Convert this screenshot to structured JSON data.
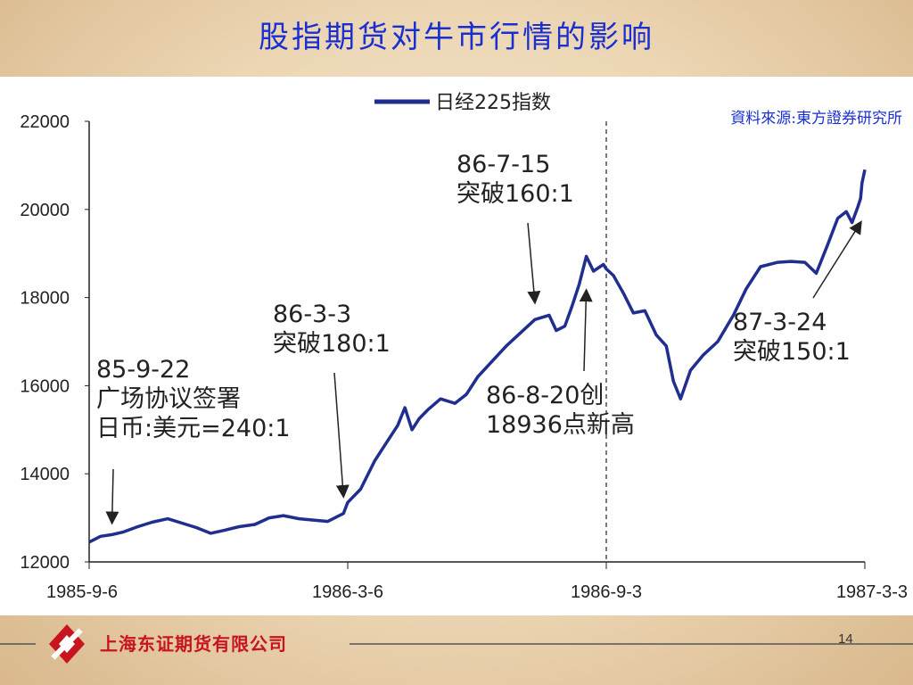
{
  "slide": {
    "title": "股指期货对牛市行情的影响",
    "page_number": "14",
    "company": "上海东证期货有限公司"
  },
  "colors": {
    "series": "#1f2e8f",
    "title": "#1a2fd0",
    "source": "#1a2fd0",
    "logo": "#c8141e"
  },
  "chart_data": {
    "type": "line",
    "source_note": "資料來源:東方證券研究所",
    "ylim": [
      12000,
      22000
    ],
    "y_ticks": [
      "12000",
      "14000",
      "16000",
      "18000",
      "20000",
      "22000"
    ],
    "x_ticks": [
      {
        "date": "1985-09-06",
        "label": "1985-9-6"
      },
      {
        "date": "1986-03-06",
        "label": "1986-3-6"
      },
      {
        "date": "1986-09-03",
        "label": "1986-9-3"
      },
      {
        "date": "1987-03-03",
        "label": "1987-3-3"
      }
    ],
    "reference_line_date": "1986-09-03",
    "series": [
      {
        "name": "日经225指数",
        "points": [
          [
            "1985-09-06",
            12450
          ],
          [
            "1985-09-14",
            12580
          ],
          [
            "1985-09-22",
            12620
          ],
          [
            "1985-09-30",
            12680
          ],
          [
            "1985-10-10",
            12800
          ],
          [
            "1985-10-20",
            12900
          ],
          [
            "1985-10-31",
            12980
          ],
          [
            "1985-11-10",
            12880
          ],
          [
            "1985-11-20",
            12780
          ],
          [
            "1985-11-30",
            12650
          ],
          [
            "1985-12-10",
            12720
          ],
          [
            "1985-12-20",
            12800
          ],
          [
            "1985-12-31",
            12850
          ],
          [
            "1986-01-10",
            13000
          ],
          [
            "1986-01-20",
            13050
          ],
          [
            "1986-01-31",
            12980
          ],
          [
            "1986-02-10",
            12950
          ],
          [
            "1986-02-20",
            12920
          ],
          [
            "1986-03-03",
            13100
          ],
          [
            "1986-03-06",
            13350
          ],
          [
            "1986-03-15",
            13650
          ],
          [
            "1986-03-25",
            14300
          ],
          [
            "1986-04-03",
            14750
          ],
          [
            "1986-04-10",
            15100
          ],
          [
            "1986-04-15",
            15500
          ],
          [
            "1986-04-20",
            15000
          ],
          [
            "1986-04-25",
            15250
          ],
          [
            "1986-05-01",
            15450
          ],
          [
            "1986-05-10",
            15700
          ],
          [
            "1986-05-20",
            15600
          ],
          [
            "1986-05-28",
            15800
          ],
          [
            "1986-06-05",
            16200
          ],
          [
            "1986-06-15",
            16550
          ],
          [
            "1986-06-25",
            16900
          ],
          [
            "1986-07-05",
            17200
          ],
          [
            "1986-07-15",
            17500
          ],
          [
            "1986-07-25",
            17600
          ],
          [
            "1986-07-30",
            17250
          ],
          [
            "1986-08-05",
            17350
          ],
          [
            "1986-08-10",
            17800
          ],
          [
            "1986-08-15",
            18300
          ],
          [
            "1986-08-20",
            18936
          ],
          [
            "1986-08-25",
            18600
          ],
          [
            "1986-09-01",
            18750
          ],
          [
            "1986-09-03",
            18650
          ],
          [
            "1986-09-08",
            18500
          ],
          [
            "1986-09-15",
            18100
          ],
          [
            "1986-09-22",
            17650
          ],
          [
            "1986-09-30",
            17700
          ],
          [
            "1986-10-08",
            17150
          ],
          [
            "1986-10-15",
            16900
          ],
          [
            "1986-10-20",
            16100
          ],
          [
            "1986-10-25",
            15700
          ],
          [
            "1986-11-01",
            16350
          ],
          [
            "1986-11-10",
            16700
          ],
          [
            "1986-11-20",
            17000
          ],
          [
            "1986-12-01",
            17600
          ],
          [
            "1986-12-10",
            18200
          ],
          [
            "1986-12-20",
            18700
          ],
          [
            "1987-01-01",
            18800
          ],
          [
            "1987-01-10",
            18820
          ],
          [
            "1987-01-20",
            18800
          ],
          [
            "1987-01-28",
            18550
          ],
          [
            "1987-02-05",
            19200
          ],
          [
            "1987-02-12",
            19800
          ],
          [
            "1987-02-18",
            19950
          ],
          [
            "1987-02-22",
            19700
          ],
          [
            "1987-02-26",
            20050
          ],
          [
            "1987-02-28",
            20250
          ],
          [
            "1987-03-01",
            20600
          ],
          [
            "1987-03-03",
            20900
          ]
        ]
      }
    ],
    "annotations": [
      {
        "name": "plaza-accord",
        "lines": [
          "85-9-22",
          "广场协议签署",
          "日币:美元=240:1"
        ],
        "arrow_date": "1985-09-22",
        "arrow_value": 12900
      },
      {
        "name": "break-180",
        "lines": [
          "86-3-3",
          "突破180:1"
        ],
        "arrow_date": "1986-03-03",
        "arrow_value": 13500
      },
      {
        "name": "break-160",
        "lines": [
          "86-7-15",
          "突破160:1"
        ],
        "arrow_date": "1986-07-15",
        "arrow_value": 17900
      },
      {
        "name": "record-high",
        "lines": [
          "86-8-20创",
          "18936点新高"
        ],
        "arrow_date": "1986-08-20",
        "arrow_value": 18150
      },
      {
        "name": "break-150",
        "lines": [
          "87-3-24",
          "突破150:1"
        ],
        "arrow_date": "1987-02-28",
        "arrow_value": 19700
      }
    ]
  }
}
